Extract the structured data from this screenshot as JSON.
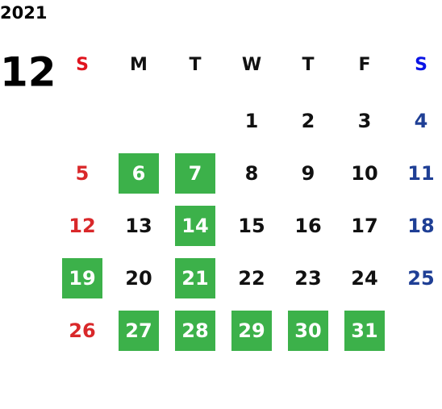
{
  "calendar": {
    "year": "2021",
    "month": "12",
    "weekdays": [
      "S",
      "M",
      "T",
      "W",
      "T",
      "F",
      "S"
    ],
    "weeks": [
      [
        null,
        null,
        null,
        1,
        2,
        3,
        4
      ],
      [
        5,
        6,
        7,
        8,
        9,
        10,
        11
      ],
      [
        12,
        13,
        14,
        15,
        16,
        17,
        18
      ],
      [
        19,
        20,
        21,
        22,
        23,
        24,
        25
      ],
      [
        26,
        27,
        28,
        29,
        30,
        31,
        null
      ]
    ],
    "highlighted_days": [
      6,
      7,
      14,
      19,
      21,
      27,
      28,
      29,
      30,
      31
    ],
    "highlight_color": "#3cb14a",
    "sunday_header_color": "#e0141e",
    "saturday_header_color": "#0a14e6",
    "sunday_color": "#d9282a",
    "saturday_color": "#1f3f95"
  }
}
